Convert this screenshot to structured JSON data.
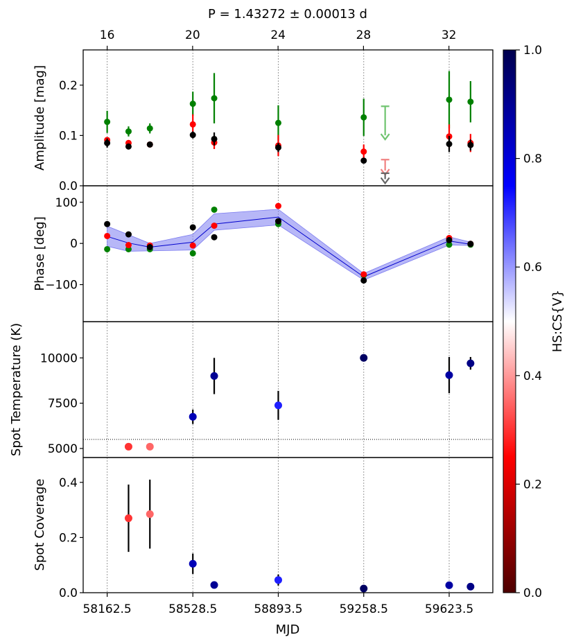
{
  "chart_data": {
    "type": "scatter",
    "title": "P = 1.43272 ± 0.00013 d",
    "xlabel": "MJD",
    "top_axis": {
      "cycle_ticks": [
        16,
        20,
        24,
        28,
        32
      ],
      "cycle_labels": [
        "16",
        "20",
        "24",
        "28",
        "32"
      ],
      "mjd_per_cycle": 91.25,
      "mjd_at_16": 58162.5
    },
    "x_ticks": [
      58162.5,
      58528.5,
      58893.5,
      59258.5,
      59623.5
    ],
    "x_tick_labels": [
      "58162.5",
      "58528.5",
      "58893.5",
      "59258.5",
      "59623.5"
    ],
    "xlim": [
      58060,
      59810
    ],
    "gridlines_at": [
      58162.5,
      58528.5,
      58893.5,
      59258.5,
      59623.5
    ],
    "colorbar": {
      "label": "HS:CS{V}",
      "range": [
        0.0,
        1.0
      ],
      "ticks": [
        0.0,
        0.2,
        0.4,
        0.6,
        0.8,
        1.0
      ],
      "tick_labels": [
        "0.0",
        "0.2",
        "0.4",
        "0.6",
        "0.8",
        "1.0"
      ],
      "colormap": "seismic_r"
    },
    "panels": [
      {
        "id": "amplitude",
        "ylabel": "Amplitude [mag]",
        "ylim": [
          0,
          0.27
        ],
        "y_ticks": [
          0.0,
          0.1,
          0.2
        ],
        "y_tick_labels": [
          "0.0",
          "0.1",
          "0.2"
        ],
        "series": [
          {
            "name": "green",
            "color": "#008000",
            "x": [
              58162.5,
              58253.8,
              58345,
              58528.5,
              58619.8,
              58893.5,
              59258.5,
              59623.5,
              59714.8
            ],
            "y": [
              0.127,
              0.108,
              0.114,
              0.163,
              0.174,
              0.125,
              0.136,
              0.171,
              0.167
            ],
            "err": [
              0.022,
              0.01,
              0.01,
              0.024,
              0.05,
              0.035,
              0.037,
              0.057,
              0.041
            ]
          },
          {
            "name": "red",
            "color": "#ff0000",
            "x": [
              58162.5,
              58253.8,
              58345,
              58528.5,
              58619.8,
              58893.5,
              59258.5,
              59623.5,
              59714.8
            ],
            "y": [
              0.091,
              0.085,
              0.082,
              0.122,
              0.086,
              0.08,
              0.068,
              0.098,
              0.085
            ],
            "err": [
              0.005,
              0.004,
              0.003,
              0.02,
              0.013,
              0.021,
              0.014,
              0.024,
              0.018
            ]
          },
          {
            "name": "black",
            "color": "#000000",
            "x": [
              58162.5,
              58253.8,
              58345,
              58528.5,
              58619.8,
              58893.5,
              59258.5,
              59623.5,
              59714.8
            ],
            "y": [
              0.085,
              0.078,
              0.082,
              0.101,
              0.093,
              0.076,
              0.05,
              0.083,
              0.081
            ],
            "err": [
              0.009,
              0.004,
              0.003,
              0.007,
              0.013,
              0.009,
              0.003,
              0.016,
              0.011
            ]
          }
        ],
        "upper_limits": [
          {
            "series": "green",
            "x": 59350,
            "y_top": 0.158,
            "y_arrow": 0.092,
            "color": "#6fc46f"
          },
          {
            "series": "red",
            "x": 59350,
            "y_top": 0.052,
            "y_arrow": 0.022,
            "color": "#f08080"
          },
          {
            "series": "black",
            "x": 59350,
            "y_top": 0.025,
            "y_arrow": 0.005,
            "color": "#666666"
          }
        ]
      },
      {
        "id": "phase",
        "ylabel": "Phase [deg]",
        "ylim": [
          -190,
          140
        ],
        "y_ticks": [
          -100,
          0,
          100
        ],
        "y_tick_labels": [
          "−100",
          "0",
          "100"
        ],
        "series": [
          {
            "name": "green",
            "color": "#008000",
            "x": [
              58162.5,
              58253.8,
              58345,
              58528.5,
              58619.8,
              58893.5,
              59258.5,
              59623.5,
              59714.8
            ],
            "y": [
              -14,
              -14,
              -14,
              -24,
              82,
              47,
              -77,
              -3,
              -3
            ]
          },
          {
            "name": "red",
            "color": "#ff0000",
            "x": [
              58162.5,
              58253.8,
              58345,
              58528.5,
              58619.8,
              58893.5,
              59258.5,
              59623.5,
              59714.8
            ],
            "y": [
              18,
              -4,
              -5,
              -5,
              43,
              91,
              -75,
              13,
              -1
            ]
          },
          {
            "name": "black",
            "color": "#000000",
            "x": [
              58162.5,
              58253.8,
              58345,
              58528.5,
              58619.8,
              58893.5,
              59258.5,
              59623.5,
              59714.8
            ],
            "y": [
              47,
              22,
              -9,
              39,
              15,
              54,
              -90,
              8,
              -1
            ]
          }
        ],
        "mean_line": {
          "color": "#0000cc",
          "band_color": "#7b7bf0",
          "x": [
            58162.5,
            58253.8,
            58345,
            58528.5,
            58619.8,
            58893.5,
            59258.5,
            59623.5,
            59714.8
          ],
          "y": [
            17,
            1,
            -9,
            3,
            47,
            64,
            -81,
            6,
            -2
          ],
          "upper": [
            42,
            21,
            0,
            22,
            72,
            83,
            -73,
            16,
            3
          ],
          "lower": [
            -7,
            -19,
            -18,
            -16,
            32,
            45,
            -89,
            -4,
            -5
          ]
        }
      },
      {
        "id": "temperature",
        "ylabel": "Spot Temperature (K)",
        "ylim": [
          4500,
          12000
        ],
        "y_ticks": [
          5000,
          7500,
          10000
        ],
        "y_tick_labels": [
          "5000",
          "7500",
          "10000"
        ],
        "reference_line": 5500,
        "points": {
          "x": [
            58253.8,
            58345,
            58528.5,
            58619.8,
            58893.5,
            59258.5,
            59623.5,
            59714.8
          ],
          "y": [
            5100,
            5100,
            6750,
            9000,
            7380,
            10000,
            9050,
            9700
          ],
          "err": [
            0,
            0,
            400,
            1000,
            800,
            0,
            1000,
            350
          ],
          "hs_cs": [
            0.3,
            0.35,
            0.85,
            0.9,
            0.72,
            0.97,
            0.88,
            0.92
          ]
        }
      },
      {
        "id": "coverage",
        "ylabel": "Spot Coverage",
        "ylim": [
          0,
          0.49
        ],
        "y_ticks": [
          0.0,
          0.2,
          0.4
        ],
        "y_tick_labels": [
          "0.0",
          "0.2",
          "0.4"
        ],
        "points": {
          "x": [
            58253.8,
            58345,
            58528.5,
            58619.8,
            58893.5,
            59258.5,
            59623.5,
            59714.8
          ],
          "y": [
            0.27,
            0.285,
            0.105,
            0.028,
            0.046,
            0.015,
            0.027,
            0.022
          ],
          "err": [
            0.122,
            0.125,
            0.037,
            0,
            0.02,
            0,
            0,
            0
          ],
          "hs_cs": [
            0.3,
            0.35,
            0.85,
            0.9,
            0.72,
            0.97,
            0.88,
            0.92
          ]
        }
      }
    ]
  }
}
